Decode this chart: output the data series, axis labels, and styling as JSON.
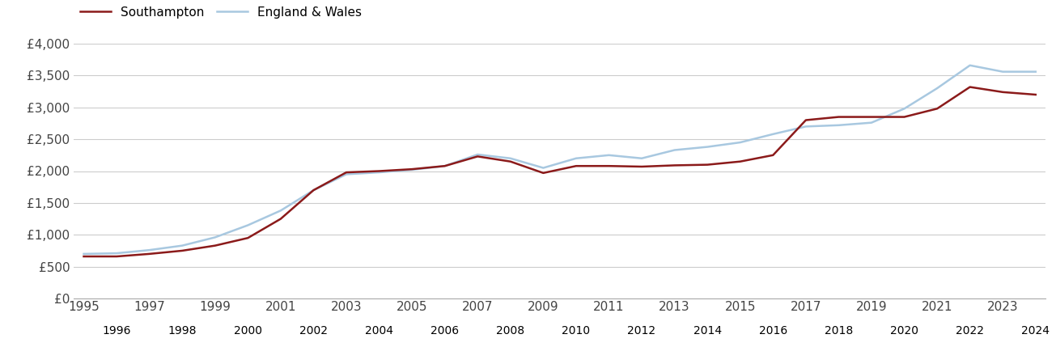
{
  "southampton": {
    "label": "Southampton",
    "color": "#8b1a1a",
    "years": [
      1995,
      1996,
      1997,
      1998,
      1999,
      2000,
      2001,
      2002,
      2003,
      2004,
      2005,
      2006,
      2007,
      2008,
      2009,
      2010,
      2011,
      2012,
      2013,
      2014,
      2015,
      2016,
      2017,
      2018,
      2019,
      2020,
      2021,
      2022,
      2023,
      2024
    ],
    "values": [
      660,
      660,
      700,
      750,
      830,
      950,
      1250,
      1700,
      1980,
      2000,
      2030,
      2080,
      2230,
      2150,
      1970,
      2080,
      2080,
      2070,
      2090,
      2100,
      2150,
      2250,
      2800,
      2850,
      2850,
      2850,
      2980,
      3320,
      3240,
      3200
    ]
  },
  "england_wales": {
    "label": "England & Wales",
    "color": "#a8c8e0",
    "years": [
      1995,
      1996,
      1997,
      1998,
      1999,
      2000,
      2001,
      2002,
      2003,
      2004,
      2005,
      2006,
      2007,
      2008,
      2009,
      2010,
      2011,
      2012,
      2013,
      2014,
      2015,
      2016,
      2017,
      2018,
      2019,
      2020,
      2021,
      2022,
      2023,
      2024
    ],
    "values": [
      700,
      710,
      760,
      830,
      960,
      1150,
      1380,
      1700,
      1950,
      1980,
      2020,
      2080,
      2260,
      2200,
      2050,
      2200,
      2250,
      2200,
      2330,
      2380,
      2450,
      2580,
      2700,
      2720,
      2760,
      2980,
      3300,
      3660,
      3560,
      3560
    ]
  },
  "ylim": [
    0,
    4000
  ],
  "yticks": [
    0,
    500,
    1000,
    1500,
    2000,
    2500,
    3000,
    3500,
    4000
  ],
  "ytick_labels": [
    "£0",
    "£500",
    "£1,000",
    "£1,500",
    "£2,000",
    "£2,500",
    "£3,000",
    "£3,500",
    "£4,000"
  ],
  "xlim_start": 1995,
  "xlim_end": 2024,
  "background_color": "#ffffff",
  "grid_color": "#cccccc",
  "line_width": 1.8,
  "legend_fontsize": 11,
  "tick_fontsize": 11
}
